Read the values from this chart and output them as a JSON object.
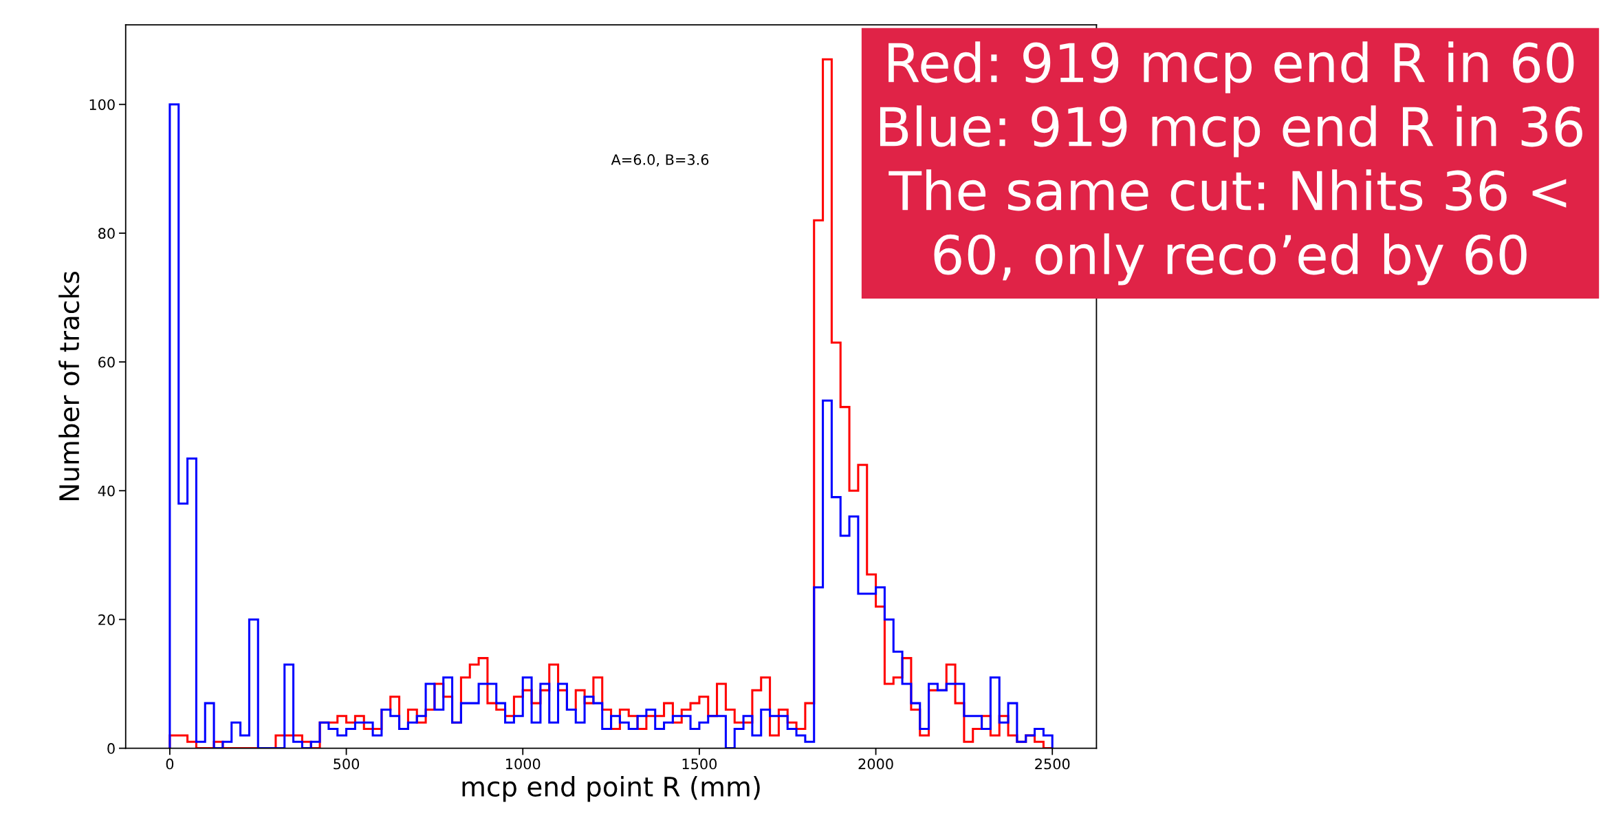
{
  "chart_data": {
    "type": "histogram",
    "xlabel": "mcp end point R (mm)",
    "ylabel": "Number of tracks",
    "bins": [
      0,
      25,
      50,
      75,
      100,
      125,
      150,
      175,
      200,
      225,
      250,
      275,
      300,
      325,
      350,
      375,
      400,
      425,
      450,
      475,
      500,
      525,
      550,
      575,
      600,
      625,
      650,
      675,
      700,
      725,
      750,
      775,
      800,
      825,
      850,
      875,
      900,
      925,
      950,
      975,
      1000,
      1025,
      1050,
      1075,
      1100,
      1125,
      1150,
      1175,
      1200,
      1225,
      1250,
      1275,
      1300,
      1325,
      1350,
      1375,
      1400,
      1425,
      1450,
      1475,
      1500,
      1525,
      1550,
      1575,
      1600,
      1625,
      1650,
      1675,
      1700,
      1725,
      1750,
      1775,
      1800,
      1825,
      1850,
      1875,
      1900,
      1925,
      1950,
      1975,
      2000,
      2025,
      2050,
      2075,
      2100,
      2125,
      2150,
      2175,
      2200,
      2225,
      2250,
      2275,
      2300,
      2325,
      2350,
      2375,
      2400,
      2425,
      2450,
      2475,
      2500
    ],
    "series": [
      {
        "color": "#ff0000",
        "values": [
          2,
          2,
          1,
          0,
          0,
          1,
          0,
          0,
          0,
          0,
          0,
          0,
          2,
          2,
          2,
          1,
          0,
          4,
          4,
          5,
          4,
          5,
          3,
          3,
          6,
          8,
          3,
          6,
          4,
          6,
          10,
          8,
          4,
          11,
          13,
          14,
          7,
          6,
          5,
          8,
          9,
          7,
          9,
          13,
          9,
          6,
          9,
          7,
          11,
          6,
          3,
          6,
          5,
          3,
          5,
          5,
          7,
          4,
          6,
          7,
          8,
          5,
          10,
          6,
          4,
          4,
          9,
          11,
          2,
          6,
          4,
          3,
          7,
          82,
          107,
          63,
          53,
          40,
          44,
          27,
          22,
          10,
          11,
          14,
          6,
          2,
          9,
          9,
          13,
          7,
          1,
          3,
          5,
          2,
          5,
          2,
          1,
          2,
          1,
          0
        ]
      },
      {
        "color": "#0000ff",
        "values": [
          100,
          38,
          45,
          1,
          7,
          0,
          1,
          4,
          2,
          20,
          0,
          0,
          0,
          13,
          1,
          0,
          1,
          4,
          3,
          2,
          3,
          4,
          4,
          2,
          6,
          5,
          3,
          4,
          5,
          10,
          6,
          11,
          4,
          7,
          7,
          10,
          10,
          7,
          4,
          5,
          11,
          4,
          10,
          4,
          10,
          6,
          4,
          8,
          7,
          3,
          5,
          4,
          3,
          5,
          6,
          3,
          4,
          5,
          5,
          3,
          4,
          5,
          5,
          0,
          3,
          5,
          2,
          6,
          5,
          5,
          3,
          2,
          1,
          25,
          54,
          39,
          33,
          36,
          24,
          24,
          25,
          20,
          15,
          10,
          7,
          3,
          10,
          9,
          10,
          10,
          5,
          5,
          3,
          11,
          4,
          7,
          1,
          2,
          3,
          2
        ]
      }
    ],
    "xlim": [
      -125,
      2625
    ],
    "ylim": [
      0,
      112.35
    ],
    "xticks": [
      0,
      500,
      1000,
      1500,
      2000,
      2500
    ],
    "yticks": [
      0,
      20,
      40,
      60,
      80,
      100
    ],
    "grid": false,
    "annotations": [
      "A=6.0, B=3.6",
      "Red: 919 mcp end R in 60\nBlue: 919 mcp end R in 36\nThe same cut: Nhits 36 <\n60, only reco’ed by 60"
    ]
  }
}
